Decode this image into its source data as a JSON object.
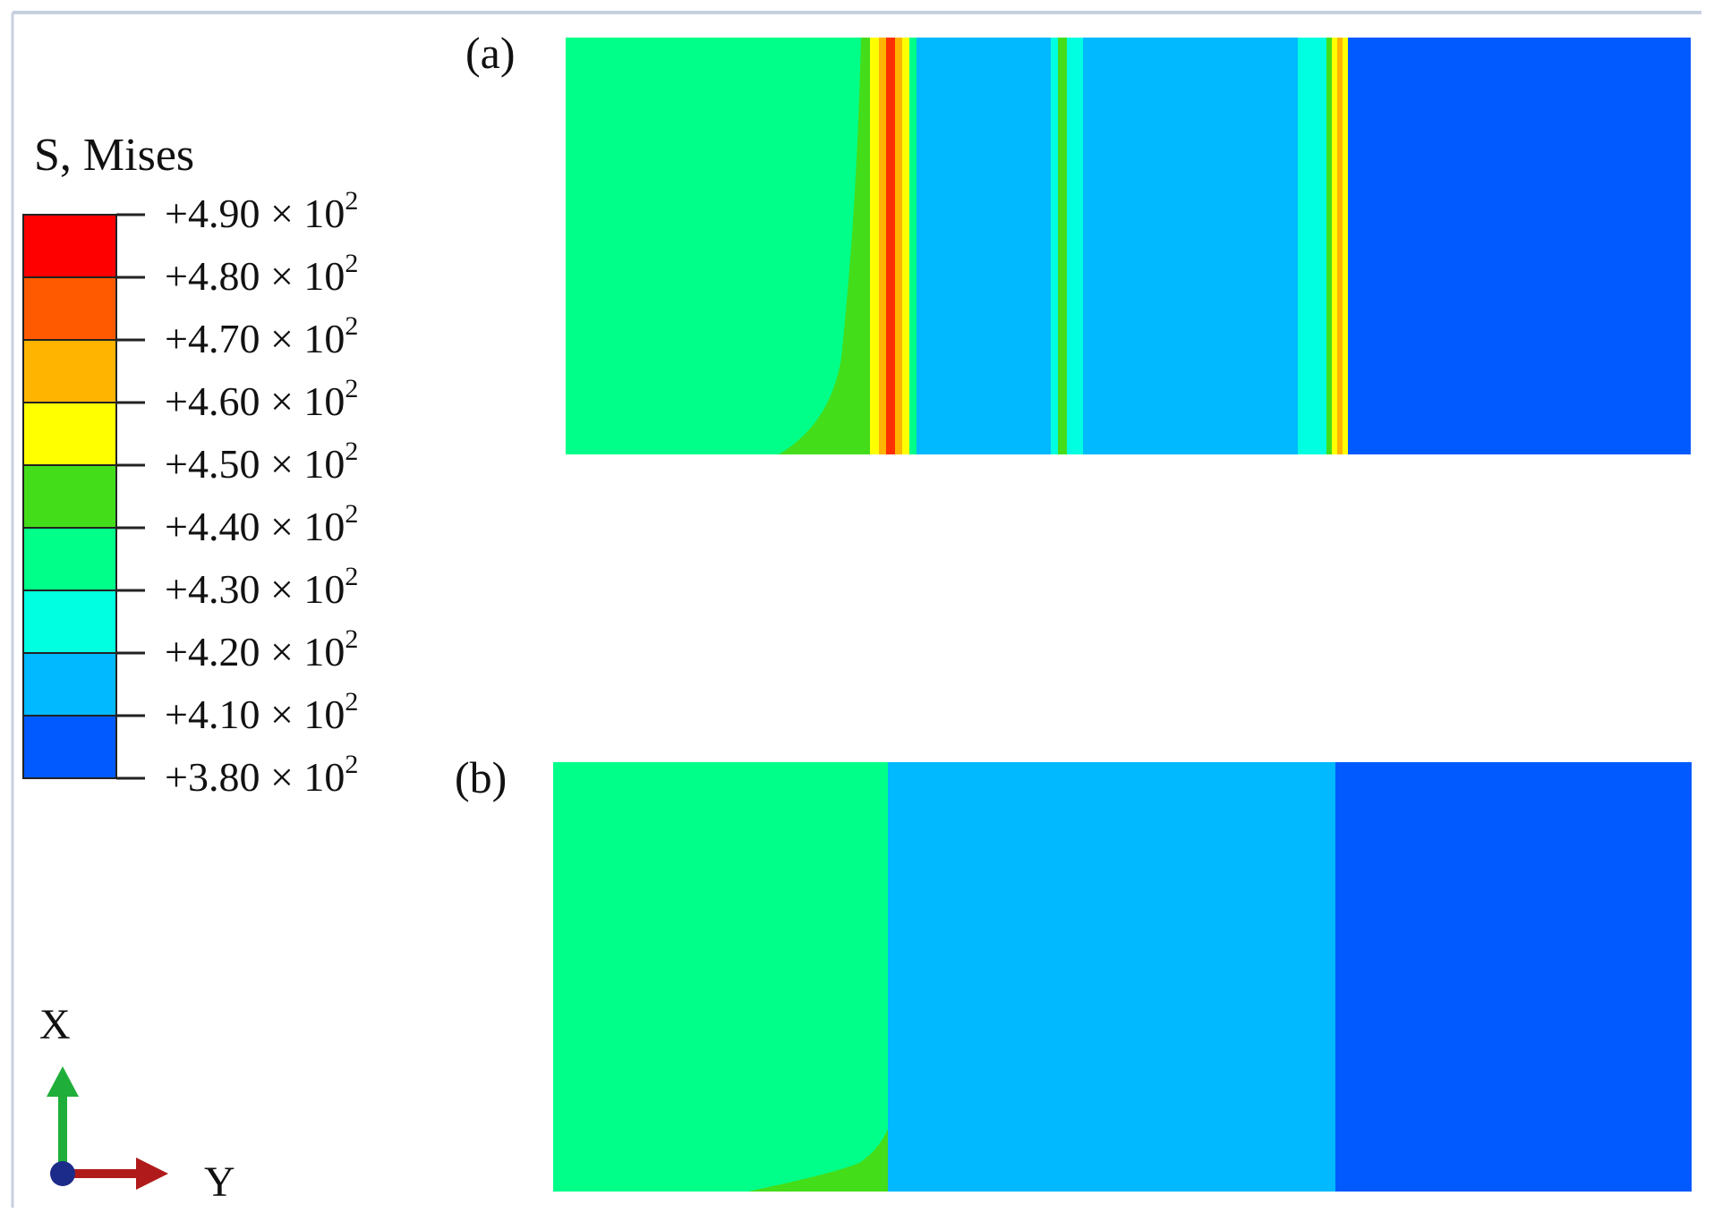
{
  "legend": {
    "title": "S, Mises",
    "exponent": "2",
    "bands": [
      {
        "color": "#ff0000"
      },
      {
        "color": "#ff5a00"
      },
      {
        "color": "#ffb400"
      },
      {
        "color": "#ffff00"
      },
      {
        "color": "#44dd1a"
      },
      {
        "color": "#00ff88"
      },
      {
        "color": "#00ffe0"
      },
      {
        "color": "#00b9ff"
      },
      {
        "color": "#005aff"
      }
    ],
    "ticks": [
      {
        "mantissa": "+4.90 × 10"
      },
      {
        "mantissa": "+4.80 × 10"
      },
      {
        "mantissa": "+4.70 × 10"
      },
      {
        "mantissa": "+4.60 × 10"
      },
      {
        "mantissa": "+4.50 × 10"
      },
      {
        "mantissa": "+4.40 × 10"
      },
      {
        "mantissa": "+4.30 × 10"
      },
      {
        "mantissa": "+4.20 × 10"
      },
      {
        "mantissa": "+4.10 × 10"
      },
      {
        "mantissa": "+3.80 × 10"
      }
    ]
  },
  "panels": {
    "a": {
      "label": "(a)"
    },
    "b": {
      "label": "(b)"
    }
  },
  "triad": {
    "x_label": "X",
    "y_label": "Y",
    "x_color": "#1fae3a",
    "y_color": "#b01a1a",
    "origin_color": "#1c2b8a"
  },
  "colors": {
    "frame_line": "#c7d0de",
    "legend_outline": "#222222"
  }
}
